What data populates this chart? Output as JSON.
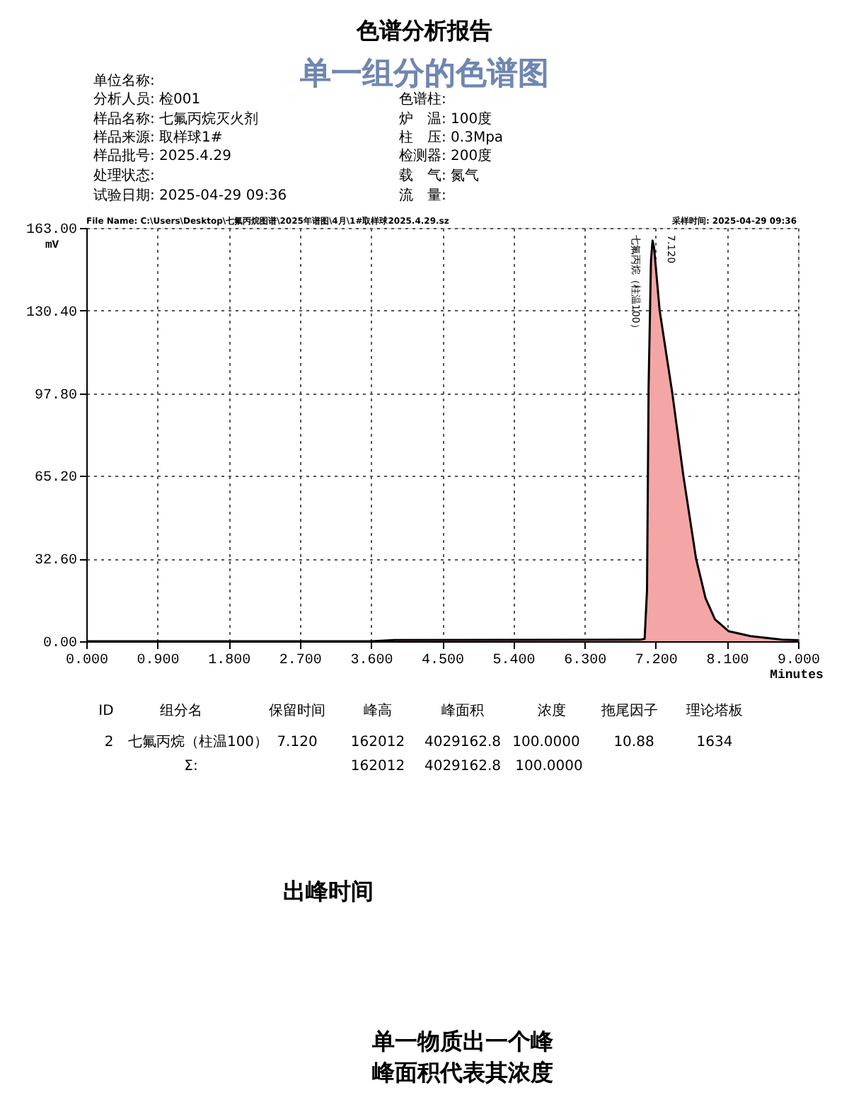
{
  "chart_data": {
    "type": "area",
    "title": "色谱分析报告",
    "subtitle": "单一组分的色谱图",
    "xlabel": "Minutes",
    "ylabel": "mV",
    "xlim": [
      0,
      9
    ],
    "ylim": [
      0,
      163
    ],
    "xticks": [
      {
        "value": 0,
        "label": "0.000"
      },
      {
        "value": 0.9,
        "label": "0.900"
      },
      {
        "value": 1.8,
        "label": "1.800"
      },
      {
        "value": 2.7,
        "label": "2.700"
      },
      {
        "value": 3.6,
        "label": "3.600"
      },
      {
        "value": 4.5,
        "label": "4.500"
      },
      {
        "value": 5.4,
        "label": "5.400"
      },
      {
        "value": 6.3,
        "label": "6.300"
      },
      {
        "value": 7.2,
        "label": "7.200"
      },
      {
        "value": 8.1,
        "label": "8.100"
      },
      {
        "value": 9,
        "label": "9.000"
      }
    ],
    "yticks": [
      {
        "value": 0,
        "label": "0.00"
      },
      {
        "value": 32.6,
        "label": "32.60"
      },
      {
        "value": 65.2,
        "label": "65.20"
      },
      {
        "value": 97.8,
        "label": "97.80"
      },
      {
        "value": 130.4,
        "label": "130.40"
      },
      {
        "value": 163,
        "label": "163.00"
      }
    ],
    "grid": true,
    "series": [
      {
        "color": "#f4a6a6",
        "x": [
          0,
          3.6,
          3.9,
          7.0,
          7.06,
          7.09,
          7.11,
          7.14,
          7.16,
          7.18,
          7.25,
          7.41,
          7.55,
          7.71,
          7.83,
          7.95,
          8.12,
          8.4,
          8.8,
          9
        ],
        "values": [
          0,
          0,
          0.5,
          0.6,
          1,
          20,
          100,
          150,
          158,
          155,
          130.4,
          97.8,
          65.2,
          32.6,
          17,
          8.6,
          4,
          2,
          0.6,
          0.4
        ]
      }
    ],
    "annotations": [
      "单位名称:",
      "分析人员: 检001",
      "样品名称: 七氟丙烷灭火剂",
      "样品来源: 取样球1#",
      "样品批号: 2025.4.29",
      "处理状态:",
      "试验日期: 2025-04-29 09:36",
      "色谱柱:",
      "炉　温: 100度",
      "柱　压: 0.3Mpa",
      "检测器: 200度",
      "载　气: 氮气",
      "流　量:",
      "File Name: C:\\Users\\Desktop\\七氟丙烷图谱\\2025年谱图\\4月\\1#取样球2025.4.29.sz",
      "采样时间: 2025-04-29 09:36",
      "ID",
      "组分名",
      "保留时间",
      "峰高",
      "峰面积",
      "浓度",
      "拖尾因子",
      "理论塔板",
      "2",
      "七氟丙烷（柱温100）",
      "7.120",
      "162012",
      "4029162.8",
      "100.0000",
      "10.88",
      "1634",
      "Σ:",
      "162012",
      "4029162.8",
      "100.0000",
      "出峰时间",
      "单一物质出一个峰",
      "峰面积代表其浓度",
      "七氟丙烷（柱温100）",
      "7.120"
    ]
  }
}
